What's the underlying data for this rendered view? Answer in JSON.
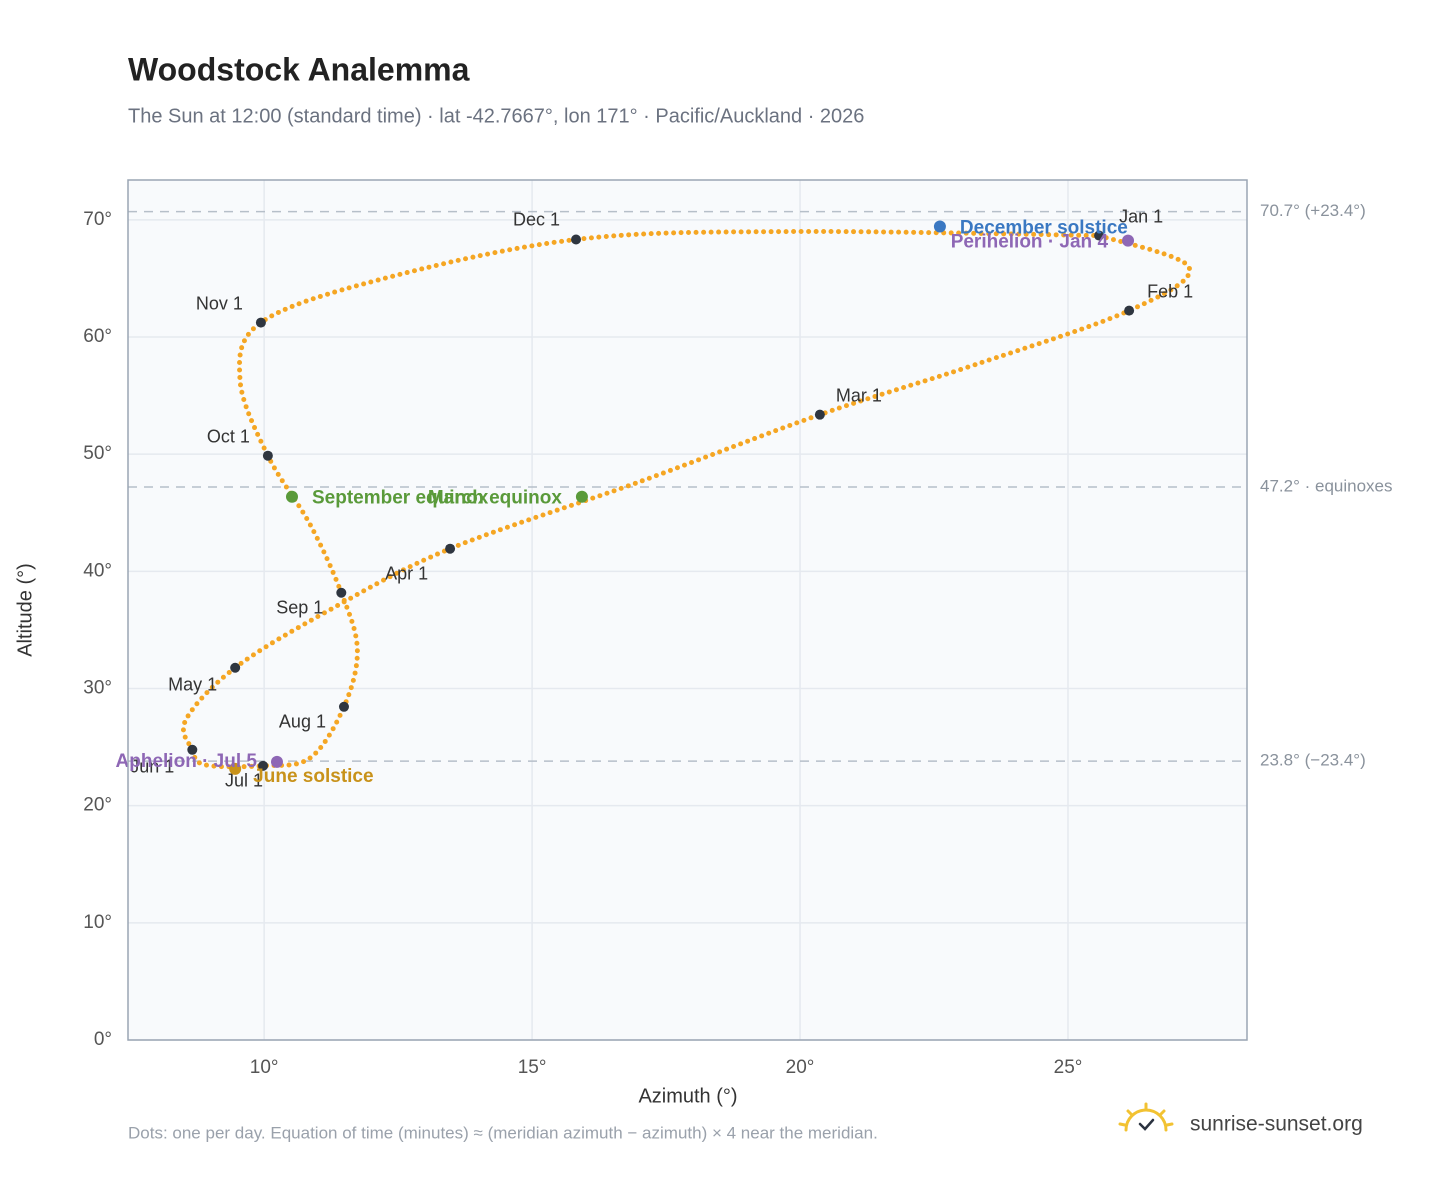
{
  "chart_data": {
    "type": "analemma",
    "title": "Woodstock Analemma",
    "subtitle": "The Sun at 12:00 (standard time) · lat -42.7667°, lon 171° · Pacific/Auckland · 2026",
    "x_label": "Azimuth (°)",
    "y_label": "Altitude (°)",
    "footnote": "Dots: one per day. Equation of time (minutes) ≈ (meridian azimuth − azimuth) × 4 near the meridian.",
    "brand": "sunrise-sunset.org",
    "xlim": [
      7.46,
      28.34
    ],
    "ylim": [
      0,
      73.4
    ],
    "xticks": [
      {
        "value": 10,
        "label": "10°"
      },
      {
        "value": 15,
        "label": "15°"
      },
      {
        "value": 20,
        "label": "20°"
      },
      {
        "value": 25,
        "label": "25°"
      }
    ],
    "yticks": [
      {
        "value": 0,
        "label": "0°"
      },
      {
        "value": 10,
        "label": "10°"
      },
      {
        "value": 20,
        "label": "20°"
      },
      {
        "value": 30,
        "label": "30°"
      },
      {
        "value": 40,
        "label": "40°"
      },
      {
        "value": 50,
        "label": "50°"
      },
      {
        "value": 60,
        "label": "60°"
      },
      {
        "value": 70,
        "label": "70°"
      }
    ],
    "grid": true,
    "path": {
      "color": "#f5a623",
      "x": [
        25.58,
        27.26,
        26.14,
        23.27,
        20.37,
        17.01,
        13.47,
        11.23,
        9.46,
        8.54,
        8.66,
        8.9,
        9.98,
        10.86,
        11.49,
        11.74,
        11.44,
        10.86,
        10.07,
        9.55,
        9.94,
        12.16,
        15.82,
        19.81,
        25.58
      ],
      "y": [
        68.66,
        65.93,
        62.25,
        57.64,
        53.37,
        47.65,
        41.93,
        36.72,
        31.77,
        27.33,
        24.77,
        23.48,
        23.4,
        24.08,
        28.44,
        33.3,
        38.17,
        43.98,
        49.87,
        56.36,
        61.23,
        64.9,
        68.32,
        69.0,
        68.66
      ]
    },
    "markers": [
      {
        "label": "Jan 1",
        "x": 25.58,
        "y": 68.66
      },
      {
        "label": "Feb 1",
        "x": 26.14,
        "y": 62.25
      },
      {
        "label": "Mar 1",
        "x": 20.37,
        "y": 53.37
      },
      {
        "label": "Apr 1",
        "x": 13.47,
        "y": 41.93
      },
      {
        "label": "May 1",
        "x": 9.46,
        "y": 31.77
      },
      {
        "label": "Jun 1",
        "x": 8.66,
        "y": 24.77
      },
      {
        "label": "Jul 1",
        "x": 9.98,
        "y": 23.4
      },
      {
        "label": "Aug 1",
        "x": 11.49,
        "y": 28.44
      },
      {
        "label": "Sep 1",
        "x": 11.44,
        "y": 38.17
      },
      {
        "label": "Oct 1",
        "x": 10.07,
        "y": 49.87
      },
      {
        "label": "Nov 1",
        "x": 9.94,
        "y": 61.23
      },
      {
        "label": "Dec 1",
        "x": 15.82,
        "y": 68.32
      }
    ],
    "events": [
      {
        "label": "June solstice",
        "x": 9.46,
        "y": 23.14,
        "color": "#c8921a"
      },
      {
        "label": "Aphelion · Jul 5",
        "x": 10.24,
        "y": 23.74,
        "color": "#8e67b5"
      },
      {
        "label": "December solstice",
        "x": 22.61,
        "y": 69.43,
        "color": "#3a78c2"
      },
      {
        "label": "Perihelion · Jan 4",
        "x": 26.12,
        "y": 68.23,
        "color": "#8e67b5"
      },
      {
        "label": "September equinox",
        "x": 10.52,
        "y": 46.37,
        "color": "#5a9a3a"
      },
      {
        "label": "March equinox",
        "x": 15.93,
        "y": 46.37,
        "color": "#5a9a3a"
      }
    ],
    "reference_lines": [
      {
        "value": 70.7,
        "label": "70.7° (+23.4°)"
      },
      {
        "value": 47.2,
        "label": "47.2° · equinoxes"
      },
      {
        "value": 23.8,
        "label": "23.8° (−23.4°)"
      }
    ]
  }
}
